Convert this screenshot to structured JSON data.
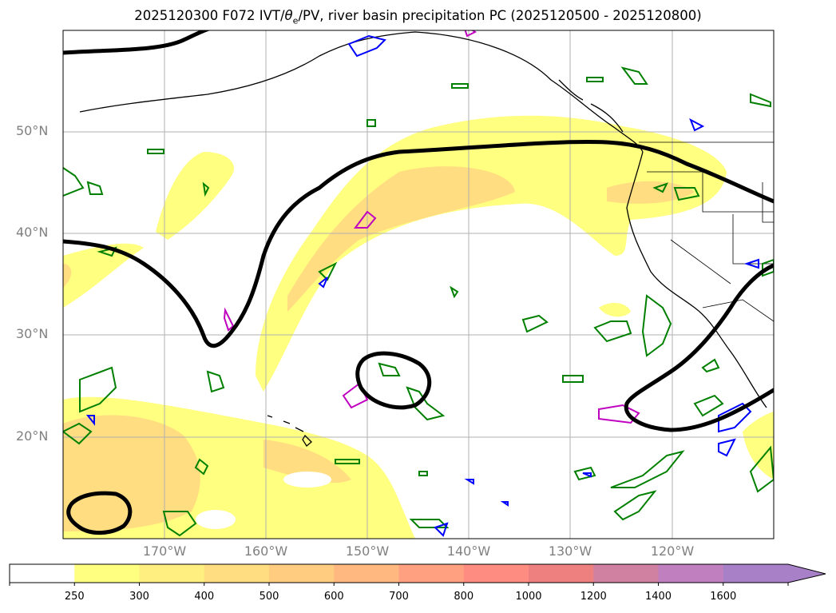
{
  "title_prefix": "2025120300 F072 IVT/",
  "title_theta": "θ",
  "title_theta_sub": "e",
  "title_suffix": "/PV, river basin precipitation PC (2025120500 - 2025120800)",
  "lat_labels": [
    "50°N",
    "40°N",
    "30°N",
    "20°N"
  ],
  "lon_labels": [
    "170°W",
    "160°W",
    "150°W",
    "140°W",
    "130°W",
    "120°W"
  ],
  "colorbar": {
    "labels": [
      "250",
      "300",
      "400",
      "500",
      "600",
      "700",
      "800",
      "1000",
      "1200",
      "1400",
      "1600"
    ],
    "colors": [
      "#ffffff",
      "#ffff80",
      "#ffee80",
      "#ffdd80",
      "#ffcc80",
      "#ffb880",
      "#ffa080",
      "#ff8c80",
      "#ee8080",
      "#d080a0",
      "#c080c0",
      "#a880c8"
    ],
    "extend": "max"
  },
  "colors": {
    "ivt_250": "#ffff80",
    "ivt_300": "#ffee80",
    "ivt_400": "#ffdd80",
    "pv_contour": "#000000",
    "theta_e_green": "#008000",
    "theta_e_blue": "#0000ff",
    "magenta": "#c000c0",
    "coastline": "#000000",
    "grid": "#b0b0b0"
  }
}
